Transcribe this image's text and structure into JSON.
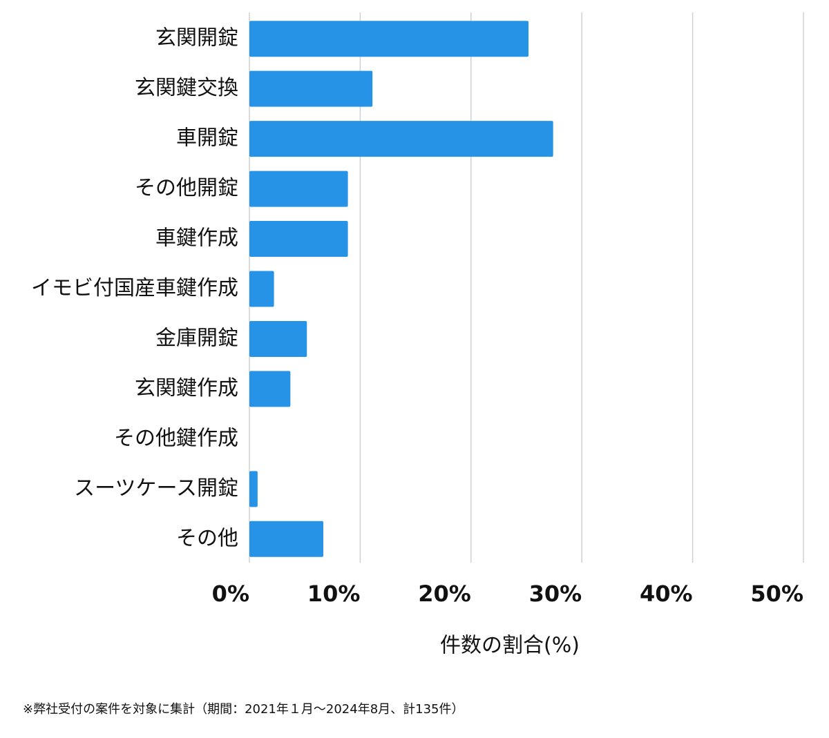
{
  "chart_data": {
    "type": "bar",
    "orientation": "horizontal",
    "categories": [
      "玄関開錠",
      "玄関鍵交換",
      "車開錠",
      "その他開錠",
      "車鍵作成",
      "イモビ付国産車鍵作成",
      "金庫開錠",
      "玄関鍵作成",
      "その他鍵作成",
      "スーツケース開錠",
      "その他"
    ],
    "values": [
      25.19,
      11.11,
      27.41,
      8.89,
      8.89,
      2.22,
      5.19,
      3.7,
      0,
      0.74,
      6.67
    ],
    "color": "#2793e6",
    "xlim": [
      0,
      50
    ],
    "xticks": [
      {
        "value": 0,
        "label": "0%"
      },
      {
        "value": 10,
        "label": "10%"
      },
      {
        "value": 20,
        "label": "20%"
      },
      {
        "value": 30,
        "label": "30%"
      },
      {
        "value": 40,
        "label": "40%"
      },
      {
        "value": 50,
        "label": "50%"
      }
    ],
    "grid": true,
    "x_label": "件数の割合(%)",
    "footnote": "※弊社受付の案件を対象に集計（期間：2021年１月～2024年8月、計135件）"
  }
}
